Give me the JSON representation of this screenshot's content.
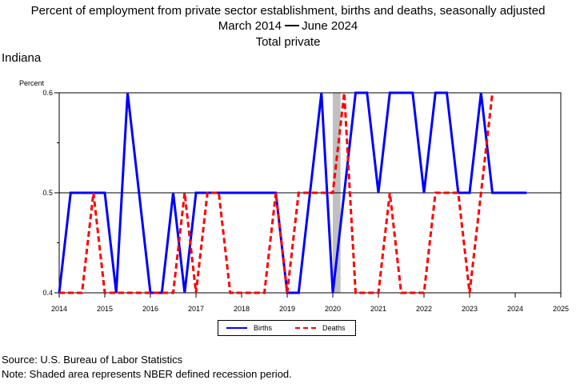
{
  "header": {
    "title_line1": "Percent of employment from private sector establishment, births and deaths, seasonally adjusted",
    "title_line2_start": "March 2014",
    "title_line2_end": "June 2024",
    "title_line3": "Total private",
    "region": "Indiana"
  },
  "footer": {
    "source": "Source: U.S. Bureau of Labor Statistics",
    "note": "Note: Shaded area represents NBER defined recession period."
  },
  "chart_data": {
    "type": "line",
    "ylabel": "Percent",
    "ylim": [
      0.4,
      0.6
    ],
    "yticks": [
      0.4,
      0.5,
      0.6
    ],
    "ytick_labels": [
      "0.4",
      "0.5",
      "0.6"
    ],
    "xlim": [
      2014,
      2025
    ],
    "xticks": [
      2014,
      2015,
      2016,
      2017,
      2018,
      2019,
      2020,
      2021,
      2022,
      2023,
      2024,
      2025
    ],
    "xtick_labels": [
      "2014",
      "2015",
      "2016",
      "2017",
      "2018",
      "2019",
      "2020",
      "2021",
      "2022",
      "2023",
      "2024",
      "2025"
    ],
    "grid": "horizontal at 0.5",
    "legend_position": "bottom-center",
    "recession_band": [
      2020.0,
      2020.17
    ],
    "series": [
      {
        "name": "Births",
        "color": "#0000ff",
        "style": "solid",
        "x": [
          2014.0,
          2014.25,
          2014.5,
          2014.75,
          2015.0,
          2015.25,
          2015.5,
          2015.75,
          2016.0,
          2016.25,
          2016.5,
          2016.75,
          2017.0,
          2017.25,
          2017.5,
          2017.75,
          2018.0,
          2018.25,
          2018.5,
          2018.75,
          2019.0,
          2019.25,
          2019.5,
          2019.75,
          2020.0,
          2020.25,
          2020.5,
          2020.75,
          2021.0,
          2021.25,
          2021.5,
          2021.75,
          2022.0,
          2022.25,
          2022.5,
          2022.75,
          2023.0,
          2023.25,
          2023.5,
          2023.75,
          2024.0,
          2024.25
        ],
        "values": [
          0.4,
          0.5,
          0.5,
          0.5,
          0.5,
          0.4,
          0.6,
          0.5,
          0.4,
          0.4,
          0.5,
          0.4,
          0.5,
          0.5,
          0.5,
          0.5,
          0.5,
          0.5,
          0.5,
          0.5,
          0.4,
          0.4,
          0.5,
          0.6,
          0.4,
          0.5,
          0.6,
          0.6,
          0.5,
          0.6,
          0.6,
          0.6,
          0.5,
          0.6,
          0.6,
          0.5,
          0.5,
          0.6,
          0.5,
          0.5,
          0.5,
          0.5
        ]
      },
      {
        "name": "Deaths",
        "color": "#ff0000",
        "style": "dashed",
        "x": [
          2014.0,
          2014.25,
          2014.5,
          2014.75,
          2015.0,
          2015.25,
          2015.5,
          2015.75,
          2016.0,
          2016.25,
          2016.5,
          2016.75,
          2017.0,
          2017.25,
          2017.5,
          2017.75,
          2018.0,
          2018.25,
          2018.5,
          2018.75,
          2019.0,
          2019.25,
          2019.5,
          2019.75,
          2020.0,
          2020.25,
          2020.5,
          2020.75,
          2021.0,
          2021.25,
          2021.5,
          2021.75,
          2022.0,
          2022.25,
          2022.5,
          2022.75,
          2023.0,
          2023.25,
          2023.5
        ],
        "values": [
          0.4,
          0.4,
          0.4,
          0.5,
          0.4,
          0.4,
          0.4,
          0.4,
          0.4,
          0.4,
          0.4,
          0.5,
          0.4,
          0.5,
          0.5,
          0.4,
          0.4,
          0.4,
          0.4,
          0.5,
          0.4,
          0.5,
          0.5,
          0.5,
          0.5,
          0.6,
          0.4,
          0.4,
          0.4,
          0.5,
          0.4,
          0.4,
          0.4,
          0.5,
          0.5,
          0.5,
          0.4,
          0.5,
          0.6
        ]
      }
    ]
  }
}
